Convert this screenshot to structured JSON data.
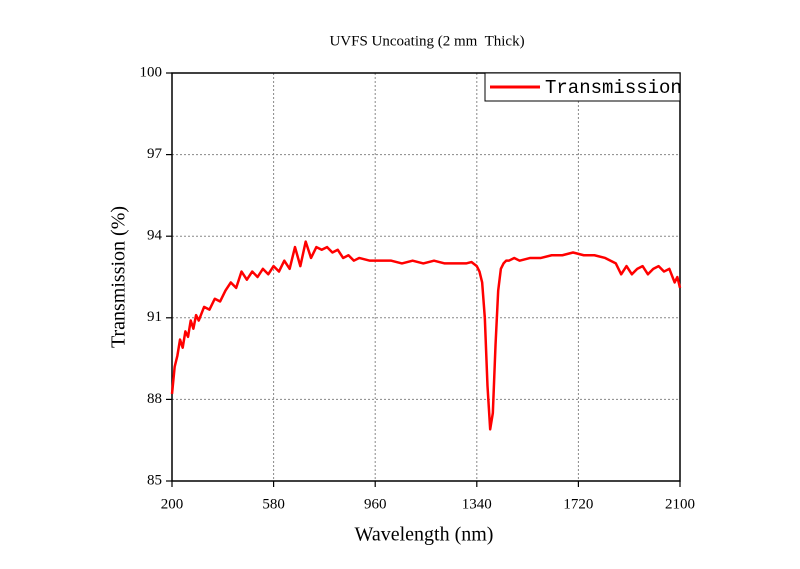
{
  "chart_data": {
    "type": "line",
    "title": "UVFS Uncoating (2 mm  Thick)",
    "x_label": "Wavelength (nm)",
    "y_label": "Transmission (%)",
    "x": [
      200,
      210,
      220,
      230,
      240,
      250,
      260,
      270,
      280,
      290,
      300,
      320,
      340,
      360,
      380,
      400,
      420,
      440,
      460,
      480,
      500,
      520,
      540,
      560,
      580,
      600,
      620,
      640,
      660,
      680,
      700,
      720,
      740,
      760,
      780,
      800,
      820,
      840,
      860,
      880,
      900,
      940,
      980,
      1020,
      1060,
      1100,
      1140,
      1180,
      1220,
      1260,
      1300,
      1320,
      1340,
      1350,
      1360,
      1370,
      1380,
      1390,
      1400,
      1410,
      1420,
      1430,
      1440,
      1450,
      1460,
      1480,
      1500,
      1540,
      1580,
      1620,
      1660,
      1700,
      1740,
      1780,
      1820,
      1860,
      1880,
      1900,
      1920,
      1940,
      1960,
      1980,
      2000,
      2020,
      2040,
      2060,
      2080,
      2090,
      2100
    ],
    "series": [
      {
        "name": "Transmission",
        "color": "#ff0000",
        "values": [
          88.2,
          89.2,
          89.6,
          90.2,
          89.9,
          90.5,
          90.3,
          90.9,
          90.6,
          91.1,
          90.9,
          91.4,
          91.3,
          91.7,
          91.6,
          92.0,
          92.3,
          92.1,
          92.7,
          92.4,
          92.7,
          92.5,
          92.8,
          92.6,
          92.9,
          92.7,
          93.1,
          92.8,
          93.6,
          92.9,
          93.8,
          93.2,
          93.6,
          93.5,
          93.6,
          93.4,
          93.5,
          93.2,
          93.3,
          93.1,
          93.2,
          93.1,
          93.1,
          93.1,
          93.0,
          93.1,
          93.0,
          93.1,
          93.0,
          93.0,
          93.0,
          93.05,
          92.9,
          92.7,
          92.3,
          91.0,
          88.5,
          86.9,
          87.5,
          90.0,
          92.0,
          92.8,
          93.0,
          93.1,
          93.1,
          93.2,
          93.1,
          93.2,
          93.2,
          93.3,
          93.3,
          93.4,
          93.3,
          93.3,
          93.2,
          93.0,
          92.6,
          92.9,
          92.6,
          92.8,
          92.9,
          92.6,
          92.8,
          92.9,
          92.7,
          92.8,
          92.3,
          92.5,
          92.1
        ]
      }
    ],
    "xlim": [
      200,
      2100
    ],
    "xticks": [
      200,
      580,
      960,
      1340,
      1720,
      2100
    ],
    "ylim": [
      85,
      100
    ],
    "yticks": [
      85,
      88,
      91,
      94,
      97,
      100
    ],
    "grid": true,
    "legend": "upper right"
  }
}
